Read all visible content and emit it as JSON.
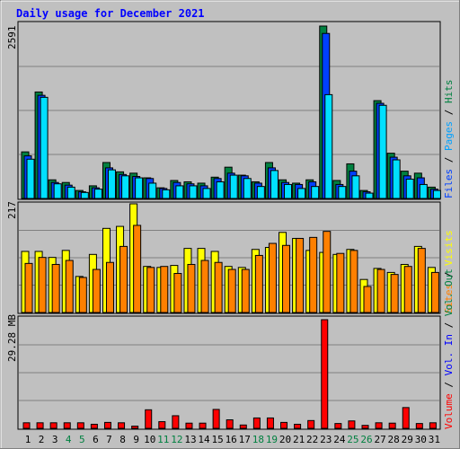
{
  "chart_data": [
    {
      "type": "bar",
      "panel": "hits-files-pages",
      "title": "Daily usage for December 2021",
      "ymax_label": "2591",
      "ylim": [
        0,
        2591
      ],
      "categories": [
        "1",
        "2",
        "3",
        "4",
        "5",
        "6",
        "7",
        "8",
        "9",
        "10",
        "11",
        "12",
        "13",
        "14",
        "15",
        "16",
        "17",
        "18",
        "19",
        "20",
        "21",
        "22",
        "23",
        "24",
        "25",
        "26",
        "27",
        "28",
        "29",
        "30",
        "31"
      ],
      "series": [
        {
          "name": "Hits",
          "color": "#008040",
          "values": [
            700,
            1600,
            280,
            240,
            120,
            190,
            540,
            400,
            380,
            310,
            160,
            270,
            250,
            230,
            320,
            470,
            350,
            250,
            540,
            280,
            230,
            280,
            2591,
            270,
            520,
            120,
            1470,
            680,
            410,
            380,
            170
          ]
        },
        {
          "name": "Files",
          "color": "#0040ff",
          "values": [
            640,
            1550,
            240,
            200,
            100,
            160,
            460,
            360,
            330,
            300,
            150,
            240,
            220,
            190,
            300,
            380,
            340,
            230,
            460,
            240,
            210,
            250,
            2480,
            210,
            410,
            100,
            1430,
            620,
            340,
            310,
            140
          ]
        },
        {
          "name": "Pages",
          "color": "#00e0ff",
          "values": [
            590,
            1520,
            220,
            170,
            90,
            140,
            430,
            340,
            310,
            230,
            130,
            190,
            190,
            150,
            250,
            350,
            300,
            180,
            420,
            210,
            150,
            180,
            1560,
            180,
            340,
            80,
            1400,
            580,
            290,
            210,
            120
          ]
        }
      ]
    },
    {
      "type": "bar",
      "panel": "visits-sites",
      "ymax_label": "217",
      "ylim": [
        0,
        217
      ],
      "categories": [
        "1",
        "2",
        "3",
        "4",
        "5",
        "6",
        "7",
        "8",
        "9",
        "10",
        "11",
        "12",
        "13",
        "14",
        "15",
        "16",
        "17",
        "18",
        "19",
        "20",
        "21",
        "22",
        "23",
        "24",
        "25",
        "26",
        "27",
        "28",
        "29",
        "30",
        "31"
      ],
      "series": [
        {
          "name": "Visits",
          "color": "#ffff00",
          "values": [
            122,
            122,
            110,
            124,
            72,
            116,
            168,
            172,
            217,
            92,
            90,
            94,
            128,
            128,
            122,
            92,
            90,
            126,
            130,
            160,
            148,
            124,
            120,
            116,
            126,
            66,
            88,
            80,
            96,
            132,
            90
          ]
        },
        {
          "name": "Sites",
          "color": "#ff8000",
          "values": [
            98,
            110,
            96,
            104,
            70,
            86,
            100,
            132,
            174,
            90,
            92,
            78,
            96,
            104,
            100,
            86,
            86,
            114,
            138,
            134,
            148,
            150,
            162,
            118,
            124,
            52,
            86,
            76,
            92,
            128,
            80
          ]
        }
      ]
    },
    {
      "type": "bar",
      "panel": "volume",
      "ymax_label": "29.28 MB",
      "ylim": [
        0,
        29.28
      ],
      "categories": [
        "1",
        "2",
        "3",
        "4",
        "5",
        "6",
        "7",
        "8",
        "9",
        "10",
        "11",
        "12",
        "13",
        "14",
        "15",
        "16",
        "17",
        "18",
        "19",
        "20",
        "21",
        "22",
        "23",
        "24",
        "25",
        "26",
        "27",
        "28",
        "29",
        "30",
        "31"
      ],
      "series": [
        {
          "name": "Volume",
          "color": "#ff0000",
          "values": [
            1.5,
            1.5,
            1.5,
            1.5,
            1.5,
            1.1,
            1.6,
            1.5,
            0.6,
            5.0,
            1.8,
            3.4,
            1.4,
            1.4,
            5.1,
            2.3,
            0.9,
            2.8,
            2.8,
            1.6,
            1.1,
            2.1,
            29.28,
            1.3,
            2.0,
            0.8,
            1.5,
            1.4,
            5.6,
            1.3,
            1.5
          ]
        }
      ]
    }
  ],
  "legend_right": {
    "bottom_panel": [
      {
        "text": "Volume",
        "color": "#ff0000"
      },
      {
        "text": " / ",
        "color": "#000000"
      },
      {
        "text": "Vol. In",
        "color": "#0000ff"
      },
      {
        "text": " / ",
        "color": "#000000"
      },
      {
        "text": "Vol. Out",
        "color": "#008040"
      }
    ],
    "middle_panel": [
      {
        "text": "Sites",
        "color": "#ff8000"
      },
      {
        "text": " / ",
        "color": "#000000"
      },
      {
        "text": "Visits",
        "color": "#ffff00"
      }
    ],
    "top_panel": [
      {
        "text": "Files",
        "color": "#0040ff"
      },
      {
        "text": " / ",
        "color": "#000000"
      },
      {
        "text": "Pages",
        "color": "#00a0ff"
      },
      {
        "text": " / ",
        "color": "#000000"
      },
      {
        "text": "Hits",
        "color": "#008040"
      }
    ]
  },
  "weekend_days": [
    "4",
    "5",
    "11",
    "12",
    "18",
    "19",
    "25",
    "26"
  ],
  "colors": {
    "title": "#0000ff",
    "background": "#c0c0c0",
    "weekday_label": "#000000",
    "weekend_label": "#008040"
  }
}
